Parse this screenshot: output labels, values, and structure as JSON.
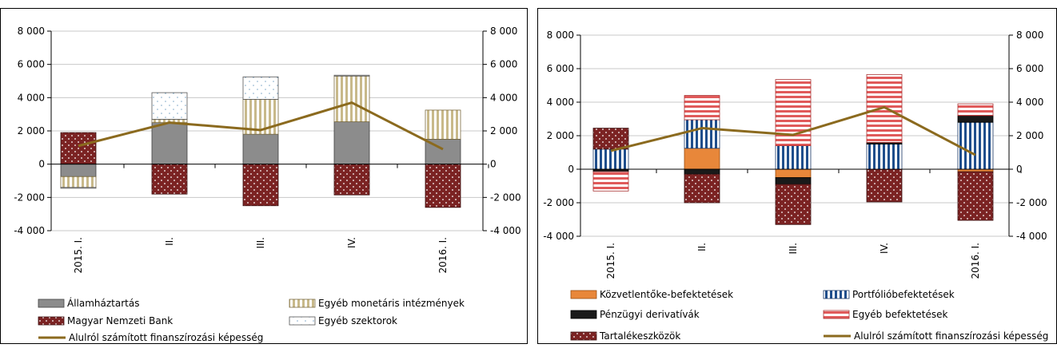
{
  "chart_data": [
    {
      "type": "bar",
      "categories": [
        "2015. I.",
        "II.",
        "III.",
        "IV.",
        "2016. I."
      ],
      "ylim": [
        -4000,
        8000
      ],
      "yticks": [
        "-4 000",
        "-2 000",
        "0",
        "2 000",
        "4 000",
        "6 000",
        "8 000"
      ],
      "y2ticks": [
        "-4 000",
        "-2 000",
        "0",
        "2 000",
        "4 000",
        "6 000",
        "8 000"
      ],
      "series": [
        {
          "name": "Államháztartás",
          "key": "gov",
          "values": [
            -750,
            2500,
            1800,
            2550,
            1500
          ]
        },
        {
          "name": "Egyéb monetáris intézmények",
          "key": "mfi",
          "values": [
            -650,
            200,
            2100,
            2750,
            1750
          ]
        },
        {
          "name": "Magyar Nemzeti Bank",
          "key": "mnb",
          "values": [
            1900,
            -1800,
            -2500,
            -1850,
            -2600
          ]
        },
        {
          "name": "Egyéb szektorok",
          "key": "oth",
          "values": [
            -50,
            1600,
            1350,
            50,
            0
          ]
        }
      ],
      "line": {
        "name": "Alulról számított finanszírozási képesség",
        "values": [
          1100,
          2500,
          2050,
          3700,
          900
        ]
      }
    },
    {
      "type": "bar",
      "categories": [
        "2015. I.",
        "II.",
        "III.",
        "IV.",
        "2016. I."
      ],
      "ylim": [
        -4000,
        8000
      ],
      "yticks": [
        "-4 000",
        "-2 000",
        "0",
        "2 000",
        "4 000",
        "6 000",
        "8 000"
      ],
      "y2ticks": [
        "-4 000",
        "-2 000",
        "0",
        "2 000",
        "4 000",
        "6 000",
        "8 000"
      ],
      "series": [
        {
          "name": "Közvetlentőke-befektetések",
          "key": "fdi",
          "values": [
            0,
            1250,
            -500,
            0,
            -150
          ]
        },
        {
          "name": "Portfólióbefektetések",
          "key": "port",
          "values": [
            1200,
            1700,
            1400,
            1500,
            2800
          ]
        },
        {
          "name": "Pénzügyi derivatívák",
          "key": "deriv",
          "values": [
            -150,
            -300,
            -400,
            100,
            400
          ]
        },
        {
          "name": "Egyéb befektetések",
          "key": "other",
          "values": [
            -1150,
            1450,
            3950,
            4050,
            700
          ]
        },
        {
          "name": "Tartalékeszközök",
          "key": "res",
          "values": [
            1250,
            -1700,
            -2400,
            -1950,
            -2900
          ]
        }
      ],
      "line": {
        "name": "Alulról számított finanszírozási képesség",
        "values": [
          1100,
          2450,
          2050,
          3700,
          850
        ]
      }
    }
  ]
}
